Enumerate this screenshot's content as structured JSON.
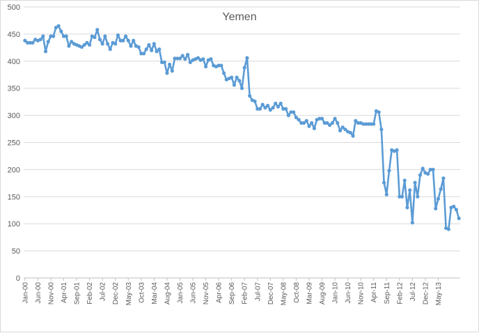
{
  "chart_data": {
    "type": "line",
    "title": "Yemen",
    "xlabel": "",
    "ylabel": "",
    "ylim": [
      0,
      500
    ],
    "yticks": [
      0,
      50,
      100,
      150,
      200,
      250,
      300,
      350,
      400,
      450,
      500
    ],
    "grid": true,
    "legend": "none",
    "x_start": "Jan-00",
    "x_tick_labels": [
      "Jan-00",
      "Jun-00",
      "Nov-00",
      "Apr-01",
      "Sep-01",
      "Feb-02",
      "Jul-02",
      "Dec-02",
      "May-03",
      "Oct-03",
      "Mar-04",
      "Aug-04",
      "Jan-05",
      "Jun-05",
      "Nov-05",
      "Apr-06",
      "Sep-06",
      "Feb-07",
      "Jul-07",
      "Dec-07",
      "May-08",
      "Oct-08",
      "Mar-09",
      "Aug-09",
      "Jan-10",
      "Jun-10",
      "Nov-10",
      "Apr-11",
      "Sep-11",
      "Feb-12",
      "Jul-12",
      "Dec-12",
      "May-13"
    ],
    "series": [
      {
        "color": "#5b9bd5",
        "values": [
          438,
          434,
          434,
          434,
          440,
          438,
          440,
          446,
          418,
          436,
          446,
          446,
          462,
          465,
          455,
          446,
          446,
          428,
          436,
          432,
          430,
          428,
          426,
          430,
          434,
          430,
          446,
          444,
          458,
          440,
          432,
          446,
          432,
          422,
          434,
          432,
          448,
          438,
          438,
          446,
          438,
          428,
          438,
          428,
          426,
          414,
          414,
          422,
          430,
          420,
          432,
          418,
          422,
          398,
          398,
          378,
          394,
          382,
          405,
          405,
          405,
          410,
          404,
          412,
          398,
          402,
          404,
          406,
          402,
          404,
          390,
          402,
          404,
          392,
          390,
          392,
          392,
          378,
          366,
          368,
          370,
          356,
          370,
          364,
          350,
          388,
          406,
          336,
          328,
          326,
          312,
          312,
          320,
          314,
          318,
          310,
          314,
          322,
          316,
          322,
          312,
          312,
          300,
          306,
          306,
          296,
          292,
          286,
          286,
          290,
          280,
          286,
          276,
          292,
          294,
          294,
          286,
          286,
          282,
          286,
          294,
          286,
          272,
          278,
          274,
          270,
          268,
          262,
          290,
          286,
          286,
          284,
          284,
          284,
          284,
          284,
          308,
          306,
          274,
          176,
          154,
          198,
          236,
          234,
          236,
          150,
          150,
          180,
          130,
          162,
          102,
          176,
          150,
          190,
          202,
          194,
          192,
          200,
          200,
          128,
          146,
          164,
          184,
          92,
          90,
          130,
          132,
          126,
          110
        ]
      }
    ]
  }
}
